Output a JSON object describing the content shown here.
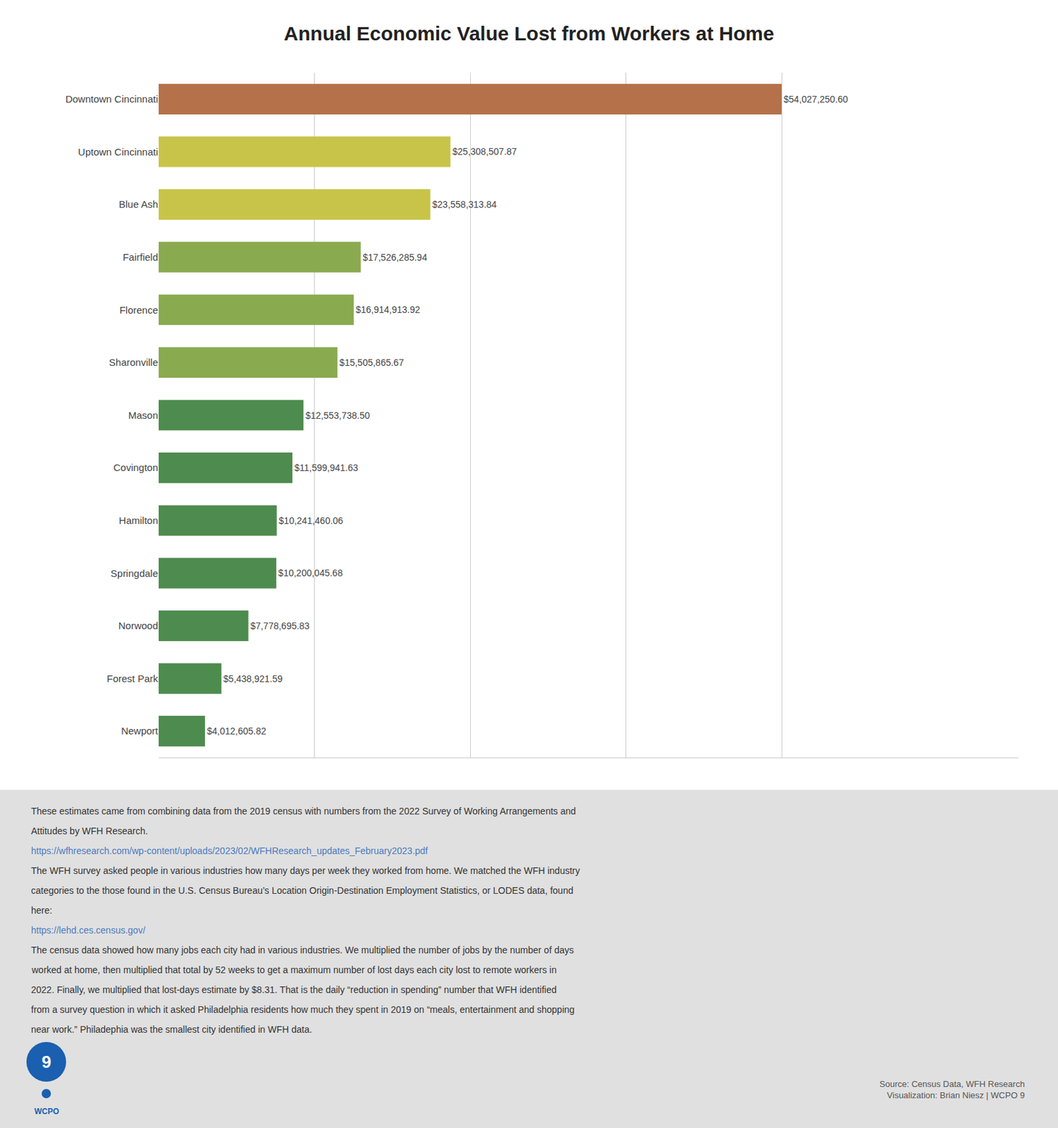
{
  "chart_data": {
    "type": "bar",
    "orientation": "horizontal",
    "title": "Annual Economic Value Lost from Workers at Home",
    "categories": [
      "Downtown Cincinnati",
      "Uptown Cincinnati",
      "Blue Ash",
      "Fairfield",
      "Florence",
      "Sharonville",
      "Mason",
      "Covington",
      "Hamilton",
      "Springdale",
      "Norwood",
      "Forest Park",
      "Newport"
    ],
    "values": [
      54027250.6,
      25308507.87,
      23558313.84,
      17526285.94,
      16914913.92,
      15505865.67,
      12553738.5,
      11599941.63,
      10241460.06,
      10200045.68,
      7778695.83,
      5438921.59,
      4012605.82
    ],
    "value_labels": [
      "$54,027,250.60",
      "$25,308,507.87",
      "$23,558,313.84",
      "$17,526,285.94",
      "$16,914,913.92",
      "$15,505,865.67",
      "$12,553,738.50",
      "$11,599,941.63",
      "$10,241,460.06",
      "$10,200,045.68",
      "$7,778,695.83",
      "$5,438,921.59",
      "$4,012,605.82"
    ],
    "data_labels": true,
    "colors": [
      "#b5714a",
      "#c8c44a",
      "#c8c44a",
      "#8aaa50",
      "#8aaa50",
      "#8aaa50",
      "#4e8b4e",
      "#4e8b4e",
      "#4e8b4e",
      "#4e8b4e",
      "#4e8b4e",
      "#4e8b4e",
      "#4e8b4e"
    ],
    "xlim": [
      0,
      74557605.828
    ],
    "xticks": [
      13506812.65,
      27013625.3,
      40520437.95,
      54027250.6
    ],
    "grid": true,
    "tick_labels": "y",
    "annotations": [
      {
        "text": "These estimates came from combining data from the 2019 census with numbers from the 2022 Survey of Working Arrangements and",
        "color": "#333333"
      },
      {
        "text": "Attitudes by WFH Research.",
        "color": "#333333"
      },
      {
        "text": "https://wfhresearch.com/wp-content/uploads/2023/02/WFHResearch_updates_February2023.pdf",
        "color": "#4a7abf"
      },
      {
        "text": "The WFH survey asked people in various industries how many days per week they worked from home. We matched the WFH industry",
        "color": "#333333"
      },
      {
        "text": "categories to the those found in the U.S. Census Bureau’s Location Origin-Destination Employment Statistics, or LODES data, found",
        "color": "#333333"
      },
      {
        "text": "here:",
        "color": "#333333"
      },
      {
        "text": "https://lehd.ces.census.gov/",
        "color": "#4a7abf"
      },
      {
        "text": "The census data showed how many jobs each city had in various industries. We multiplied the number of jobs by the number of days",
        "color": "#333333"
      },
      {
        "text": "worked at home, then multiplied that total by 52 weeks to get a maximum number of lost days each city lost to remote workers in",
        "color": "#333333"
      },
      {
        "text": "2022. Finally, we multiplied that lost-days estimate by $8.31. That is the daily “reduction in spending” number that WFH identified",
        "color": "#333333"
      },
      {
        "text": "from a survey question in which it asked Philadelphia residents how much they spent in 2019 on “meals, entertainment and shopping",
        "color": "#333333"
      },
      {
        "text": "near work.” Philadephia was the smallest city identified in WFH data.",
        "color": "#333333"
      },
      {
        "text": "Source: Census Data, WFH Research\nVisualization: Brian Niesz | WCPO 9",
        "color": "#555555"
      },
      {
        "text": "9",
        "color": "#ffffff"
      },
      {
        "text": "WCPO",
        "color": "#1a5fb0"
      }
    ]
  }
}
